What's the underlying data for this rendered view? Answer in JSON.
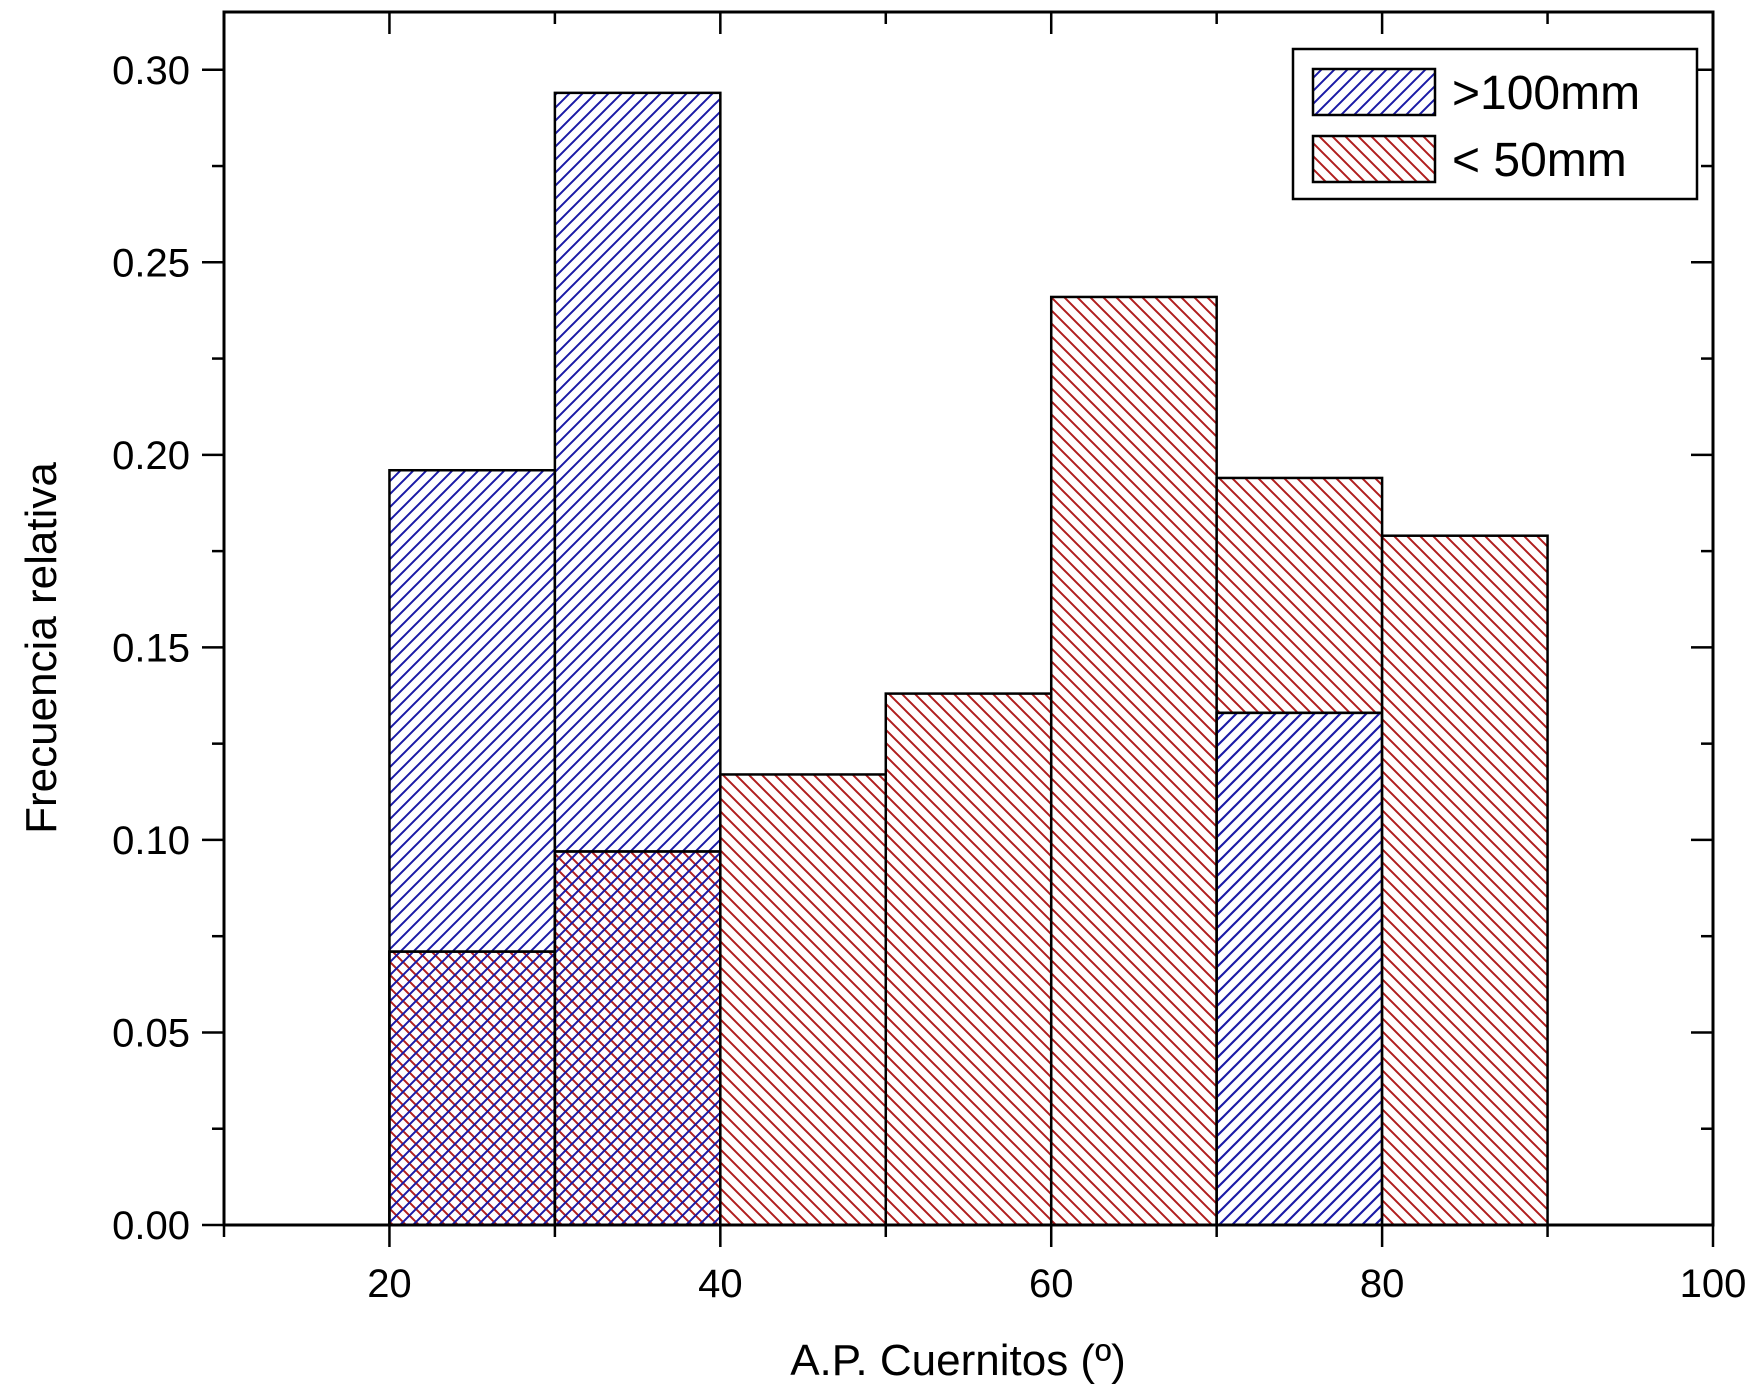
{
  "chart_data": {
    "type": "bar",
    "title": "",
    "xlabel": "A.P. Cuernitos (º)",
    "ylabel": "Frecuencia relativa",
    "xlim": [
      10,
      100
    ],
    "ylim": [
      0,
      0.315
    ],
    "xticks": [
      "20",
      "40",
      "60",
      "80",
      "100"
    ],
    "xtick_values": [
      20,
      40,
      60,
      80,
      100
    ],
    "yticks": [
      "0.00",
      "0.05",
      "0.10",
      "0.15",
      "0.20",
      "0.25",
      "0.30"
    ],
    "ytick_values": [
      0,
      0.05,
      0.1,
      0.15,
      0.2,
      0.25,
      0.3
    ],
    "bin_edges": [
      20,
      30,
      40,
      50,
      60,
      70,
      80,
      90
    ],
    "grid": false,
    "legend_position": "top-right",
    "series": [
      {
        "name": ">100mm",
        "color": "#1a1aa6",
        "hatch": "backslash",
        "values": [
          0.196,
          0.294,
          0,
          0,
          0,
          0.133,
          0
        ]
      },
      {
        "name": "< 50mm",
        "color": "#b01e1e",
        "hatch": "slash",
        "values": [
          0.071,
          0.097,
          0.117,
          0.138,
          0.241,
          0.194,
          0.179
        ]
      }
    ]
  }
}
